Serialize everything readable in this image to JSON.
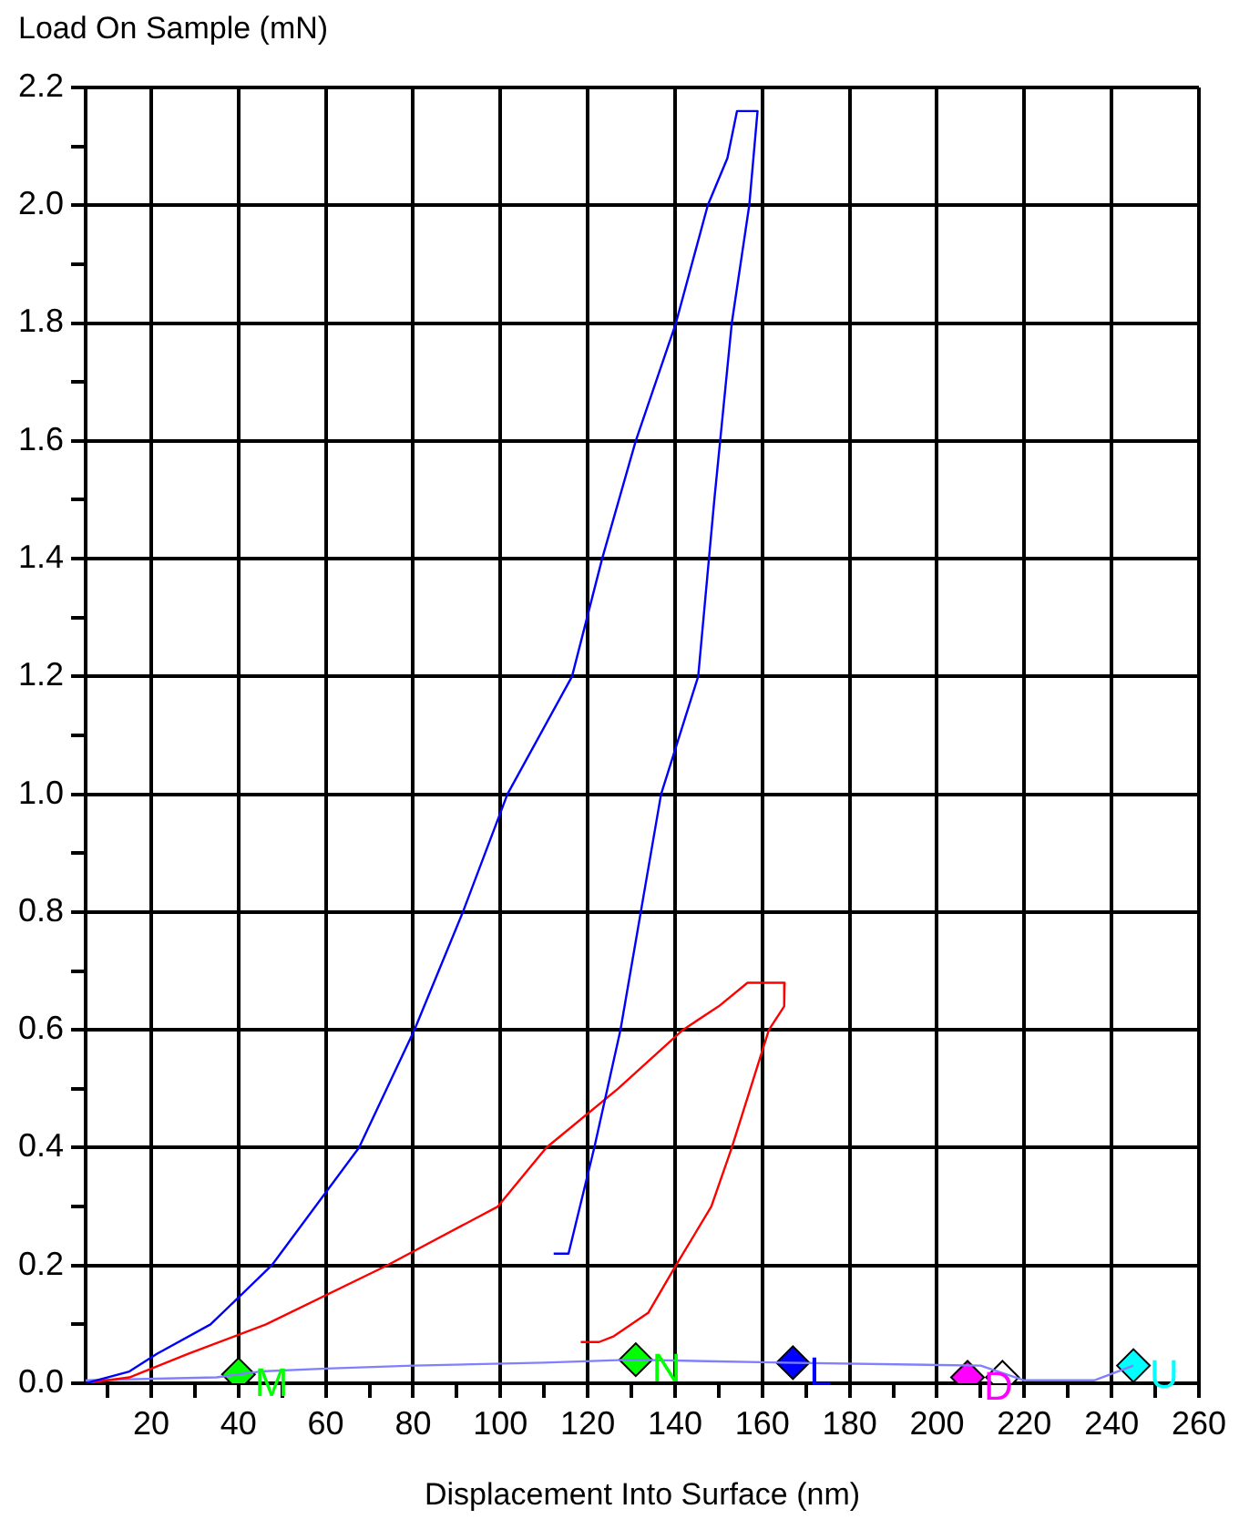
{
  "chart_data": {
    "type": "line",
    "xlabel": "Displacement Into Surface (nm)",
    "ylabel": "Load On Sample (mN)",
    "xlim": [
      5,
      260
    ],
    "ylim": [
      0,
      2.2
    ],
    "xticks": [
      {
        "value": 10,
        "label": null
      },
      20,
      {
        "value": 30,
        "label": null
      },
      40,
      {
        "value": 50,
        "label": null
      },
      60,
      {
        "value": 70,
        "label": null
      },
      80,
      {
        "value": 90,
        "label": null
      },
      100,
      {
        "value": 110,
        "label": null
      },
      120,
      {
        "value": 130,
        "label": null
      },
      140,
      {
        "value": 150,
        "label": null
      },
      160,
      {
        "value": 170,
        "label": null
      },
      180,
      {
        "value": 190,
        "label": null
      },
      200,
      {
        "value": 210,
        "label": null
      },
      220,
      {
        "value": 230,
        "label": null
      },
      240,
      {
        "value": 250,
        "label": null
      },
      260
    ],
    "yticks": [
      {
        "value": 0,
        "label": "0.0"
      },
      {
        "value": 0.1,
        "label": null
      },
      {
        "value": 0.2,
        "label": "0.2"
      },
      {
        "value": 0.3,
        "label": null
      },
      {
        "value": 0.4,
        "label": "0.4"
      },
      {
        "value": 0.5,
        "label": null
      },
      {
        "value": 0.6,
        "label": "0.6"
      },
      {
        "value": 0.7,
        "label": null
      },
      {
        "value": 0.8,
        "label": "0.8"
      },
      {
        "value": 0.9,
        "label": null
      },
      {
        "value": 1,
        "label": "1.0"
      },
      {
        "value": 1.1,
        "label": null
      },
      {
        "value": 1.2,
        "label": "1.2"
      },
      {
        "value": 1.3,
        "label": null
      },
      {
        "value": 1.4,
        "label": "1.4"
      },
      {
        "value": 1.5,
        "label": null
      },
      {
        "value": 1.6,
        "label": "1.6"
      },
      {
        "value": 1.7,
        "label": null
      },
      {
        "value": 1.8,
        "label": "1.8"
      },
      {
        "value": 1.9,
        "label": null
      },
      {
        "value": 2,
        "label": "2.0"
      },
      {
        "value": 2.1,
        "label": null
      },
      {
        "value": 2.2,
        "label": "2.2"
      }
    ],
    "grid": true,
    "legend": false,
    "series": [
      {
        "color": "#0000ff",
        "x": [
          5,
          15,
          21.3,
          33.6,
          47.6,
          67.6,
          80.3,
          91.4,
          101.6,
          116.4,
          123.3,
          131,
          140.2,
          147.5,
          152,
          154.2,
          158.9,
          157,
          153,
          149,
          145.3,
          136.8,
          127.5,
          121.5,
          115.6,
          112.2
        ],
        "values": [
          0,
          0.02,
          0.05,
          0.1,
          0.2,
          0.4,
          0.6,
          0.8,
          1.0,
          1.2,
          1.4,
          1.6,
          1.8,
          2.0,
          2.08,
          2.16,
          2.16,
          2.0,
          1.8,
          1.5,
          1.2,
          1.0,
          0.6,
          0.4,
          0.22,
          0.22
        ]
      },
      {
        "color": "#ff0000",
        "x": [
          5,
          15,
          28.5,
          46.3,
          74,
          99.4,
          110.5,
          126.9,
          141.8,
          150,
          156.6,
          165.1,
          165,
          161.5,
          153,
          148.3,
          140.2,
          133.9,
          126,
          122.6,
          118.4
        ],
        "values": [
          0,
          0.01,
          0.05,
          0.1,
          0.2,
          0.3,
          0.4,
          0.5,
          0.6,
          0.64,
          0.68,
          0.68,
          0.64,
          0.6,
          0.4,
          0.3,
          0.2,
          0.12,
          0.08,
          0.07,
          0.07
        ]
      },
      {
        "color": "#8080ff",
        "x": [
          5,
          35,
          40,
          45,
          60,
          80,
          110,
          130,
          165,
          210,
          220,
          236,
          245
        ],
        "values": [
          0.005,
          0.01,
          0.015,
          0.02,
          0.025,
          0.03,
          0.035,
          0.04,
          0.035,
          0.03,
          0.005,
          0.005,
          0.03
        ]
      },
      {
        "type": "scatter",
        "marker": "diamond",
        "name": "M",
        "color": "#00ff00",
        "x": [
          40
        ],
        "values": [
          0.015
        ]
      },
      {
        "type": "scatter",
        "marker": "diamond",
        "name": "N",
        "color": "#00ff00",
        "x": [
          131
        ],
        "values": [
          0.04
        ]
      },
      {
        "type": "scatter",
        "marker": "diamond",
        "name": "L",
        "color": "#0000ff",
        "x": [
          167
        ],
        "values": [
          0.035
        ]
      },
      {
        "type": "scatter",
        "marker": "diamond",
        "name": "D",
        "color": "#ff00ff",
        "x": [
          207
        ],
        "values": [
          0.01
        ]
      },
      {
        "type": "scatter",
        "marker": "diamond",
        "color": "#ffffff",
        "x": [
          215
        ],
        "values": [
          0.01
        ]
      },
      {
        "type": "scatter",
        "marker": "diamond",
        "name": "U",
        "color": "#00ffff",
        "x": [
          245
        ],
        "values": [
          0.03
        ]
      }
    ]
  }
}
